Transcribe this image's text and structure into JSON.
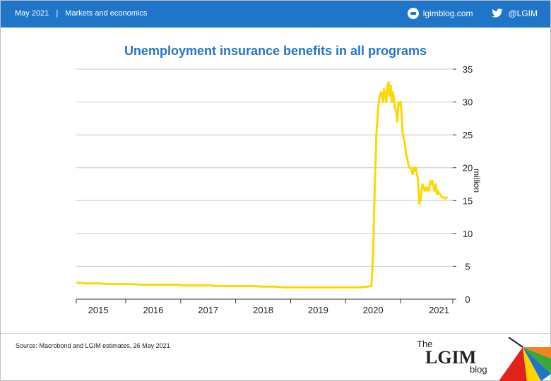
{
  "header": {
    "date": "May 2021",
    "separator": "|",
    "section": "Markets and economics",
    "site": "lgimblog.com",
    "handle": "@LGIM",
    "site_icon": "blog-icon",
    "handle_icon": "twitter-icon"
  },
  "footer": {
    "source": "Source: Macrobond and LGIM  estimates, 26 May  2021",
    "brand_the": "The",
    "brand_name": "LGIM",
    "brand_blog": "blog"
  },
  "colors": {
    "header_bg": "#1f76c9",
    "title": "#1f76c9",
    "line": "#ffd700",
    "grid": "#c8c8c8"
  },
  "chart_data": {
    "type": "line",
    "title": "Unemployment insurance benefits in all programs",
    "xlabel": "",
    "ylabel": "million",
    "y_axis_side": "right",
    "ylim": [
      0,
      35
    ],
    "yticks": [
      0,
      5,
      10,
      15,
      20,
      25,
      30,
      35
    ],
    "xlim": [
      2014.6,
      2021.45
    ],
    "xticks": [
      {
        "label": "2015",
        "value": 2015.0
      },
      {
        "label": "2016",
        "value": 2016.0
      },
      {
        "label": "2017",
        "value": 2017.0
      },
      {
        "label": "2018",
        "value": 2018.0
      },
      {
        "label": "2019",
        "value": 2019.0
      },
      {
        "label": "2020",
        "value": 2020.0
      },
      {
        "label": "2021",
        "value": 2021.0
      }
    ],
    "grid": true,
    "legend": "none",
    "series": [
      {
        "x": [
          2014.62,
          2014.8,
          2015.0,
          2015.2,
          2015.4,
          2015.6,
          2015.8,
          2016.0,
          2016.2,
          2016.4,
          2016.6,
          2016.8,
          2017.0,
          2017.2,
          2017.4,
          2017.6,
          2017.8,
          2018.0,
          2018.2,
          2018.4,
          2018.6,
          2018.8,
          2019.0,
          2019.2,
          2019.4,
          2019.6,
          2019.75,
          2019.9,
          2019.97,
          2020.0,
          2020.03,
          2020.06,
          2020.09,
          2020.12,
          2020.15,
          2020.18,
          2020.2,
          2020.22,
          2020.24,
          2020.26,
          2020.28,
          2020.3,
          2020.32,
          2020.34,
          2020.36,
          2020.38,
          2020.4,
          2020.42,
          2020.44,
          2020.46,
          2020.48,
          2020.5,
          2020.52,
          2020.54,
          2020.56,
          2020.58,
          2020.6,
          2020.62,
          2020.64,
          2020.66,
          2020.68,
          2020.7,
          2020.72,
          2020.74,
          2020.76,
          2020.78,
          2020.8,
          2020.82,
          2020.84,
          2020.86,
          2020.88,
          2020.9,
          2020.92,
          2020.94,
          2020.96,
          2020.98,
          2021.0,
          2021.02,
          2021.04,
          2021.06,
          2021.08,
          2021.1,
          2021.12,
          2021.14,
          2021.16,
          2021.18,
          2021.2,
          2021.22,
          2021.25,
          2021.28,
          2021.31,
          2021.34
        ],
        "values": [
          2.5,
          2.4,
          2.4,
          2.3,
          2.3,
          2.3,
          2.2,
          2.2,
          2.2,
          2.2,
          2.1,
          2.1,
          2.1,
          2.0,
          2.0,
          2.0,
          2.0,
          1.9,
          1.9,
          1.8,
          1.8,
          1.8,
          1.8,
          1.8,
          1.8,
          1.8,
          1.8,
          1.9,
          2.0,
          7.0,
          17.0,
          25.0,
          29.0,
          31.0,
          31.5,
          30.0,
          32.0,
          31.0,
          30.0,
          32.5,
          33.0,
          31.0,
          32.5,
          30.0,
          31.5,
          30.5,
          29.0,
          28.5,
          27.0,
          30.0,
          29.5,
          30.0,
          28.0,
          25.0,
          24.5,
          23.5,
          22.0,
          21.5,
          20.5,
          20.0,
          20.0,
          19.5,
          19.0,
          20.0,
          19.5,
          20.0,
          19.0,
          18.0,
          14.5,
          15.0,
          16.5,
          17.5,
          17.0,
          16.5,
          17.0,
          16.5,
          17.0,
          16.5,
          18.0,
          17.5,
          18.0,
          17.0,
          16.5,
          17.5,
          16.0,
          16.5,
          16.0,
          16.0,
          15.5,
          15.5,
          15.3,
          15.5
        ]
      }
    ]
  }
}
